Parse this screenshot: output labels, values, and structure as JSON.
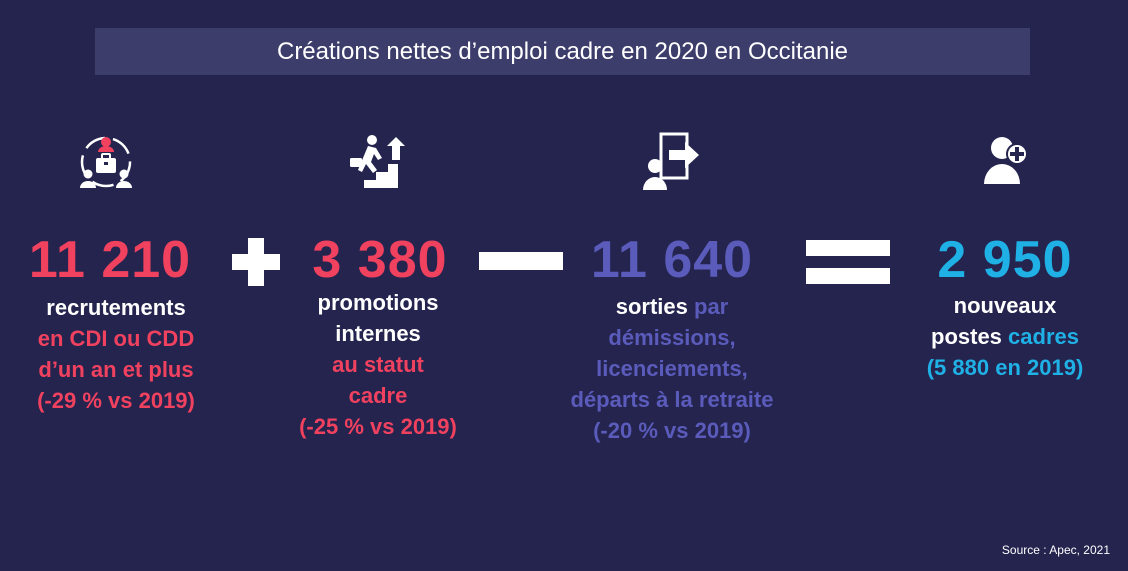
{
  "title": "Créations nettes d’emploi cadre en 2020 en Occitanie",
  "colors": {
    "background": "#24244f",
    "title_bar": "#3d3d6c",
    "pink": "#f0415f",
    "purple": "#5b5bbb",
    "cyan": "#1fb1e6",
    "white": "#ffffff"
  },
  "blocks": [
    {
      "icon": "team-briefcase-icon",
      "value": "11 210",
      "lines": [
        {
          "text": "recrutements",
          "color": "white"
        },
        {
          "text": "en CDI ou CDD",
          "color": "pink"
        },
        {
          "text": "d’un an et plus",
          "color": "pink"
        },
        {
          "text": "(-29 % vs 2019)",
          "color": "pink"
        }
      ]
    },
    {
      "icon": "stairs-climb-icon",
      "value": "3 380",
      "lines": [
        {
          "text": "promotions",
          "color": "white"
        },
        {
          "text": "internes",
          "color": "white"
        },
        {
          "text": "au statut",
          "color": "pink"
        },
        {
          "text": "cadre",
          "color": "pink"
        },
        {
          "text": "(-25 % vs 2019)",
          "color": "pink"
        }
      ]
    },
    {
      "icon": "exit-door-icon",
      "value": "11 640",
      "lines": [
        {
          "text": "sorties",
          "text_white": "sorties",
          "text_rest": " par"
        },
        {
          "text": "démissions,",
          "color": "purple"
        },
        {
          "text": "licenciements,",
          "color": "purple"
        },
        {
          "text": "départs à la retraite",
          "color": "purple"
        },
        {
          "text": "(-20 % vs 2019)",
          "color": "purple"
        }
      ]
    },
    {
      "icon": "add-user-icon",
      "value": "2 950",
      "lines": [
        {
          "text": "nouveaux",
          "color": "white"
        },
        {
          "text": "postes cadres",
          "text_white": "postes",
          "text_rest": " cadres"
        },
        {
          "text": "(5 880 en 2019)",
          "color": "cyan"
        }
      ]
    }
  ],
  "operators": [
    "plus",
    "minus",
    "equals"
  ],
  "source": "Source : Apec, 2021"
}
